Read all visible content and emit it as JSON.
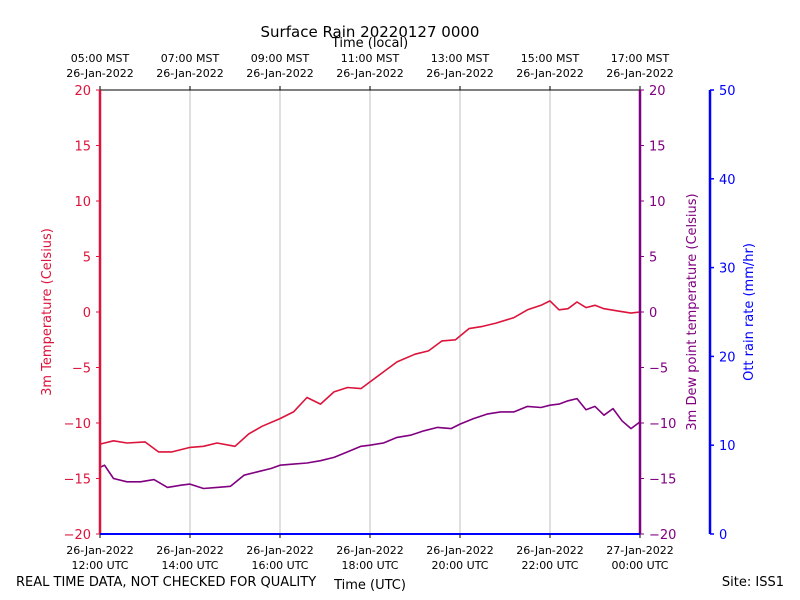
{
  "chart_data": {
    "type": "line",
    "title": "Surface Rain 20220127 0000",
    "top_axis_label": "Time (local)",
    "xlabel": "Time (UTC)",
    "top_ticks": [
      {
        "l1": "05:00 MST",
        "l2": "26-Jan-2022"
      },
      {
        "l1": "07:00 MST",
        "l2": "26-Jan-2022"
      },
      {
        "l1": "09:00 MST",
        "l2": "26-Jan-2022"
      },
      {
        "l1": "11:00 MST",
        "l2": "26-Jan-2022"
      },
      {
        "l1": "13:00 MST",
        "l2": "26-Jan-2022"
      },
      {
        "l1": "15:00 MST",
        "l2": "26-Jan-2022"
      },
      {
        "l1": "17:00 MST",
        "l2": "26-Jan-2022"
      }
    ],
    "bottom_ticks": [
      {
        "l1": "26-Jan-2022",
        "l2": "12:00 UTC"
      },
      {
        "l1": "26-Jan-2022",
        "l2": "14:00 UTC"
      },
      {
        "l1": "26-Jan-2022",
        "l2": "16:00 UTC"
      },
      {
        "l1": "26-Jan-2022",
        "l2": "18:00 UTC"
      },
      {
        "l1": "26-Jan-2022",
        "l2": "20:00 UTC"
      },
      {
        "l1": "26-Jan-2022",
        "l2": "22:00 UTC"
      },
      {
        "l1": "27-Jan-2022",
        "l2": "00:00 UTC"
      }
    ],
    "x_range_hours": [
      12,
      24
    ],
    "x_unit": "UTC hour on 26-Jan-2022",
    "y_left": {
      "label": "3m Temperature (Celsius)",
      "range": [
        -20,
        20
      ],
      "ticks": [
        "20",
        "15",
        "10",
        "5",
        "0",
        "−5",
        "−10",
        "−15",
        "−20"
      ],
      "color": "#dc143c"
    },
    "y_right1": {
      "label": "3m Dew point temperature (Celsius)",
      "range": [
        -20,
        20
      ],
      "ticks": [
        "20",
        "15",
        "10",
        "5",
        "0",
        "−5",
        "−10",
        "−15",
        "−20"
      ],
      "color": "#800080"
    },
    "y_right2": {
      "label": "Ott rain rate (mm/hr)",
      "range": [
        0,
        50
      ],
      "ticks": [
        "50",
        "40",
        "30",
        "20",
        "10",
        "0"
      ],
      "color": "#0000ff"
    },
    "grid": "vertical",
    "series": [
      {
        "name": "3m Temperature",
        "color": "#dc143c",
        "x": [
          12.0,
          12.3,
          12.6,
          13.0,
          13.3,
          13.6,
          14.0,
          14.3,
          14.6,
          15.0,
          15.3,
          15.6,
          16.0,
          16.3,
          16.6,
          16.9,
          17.2,
          17.5,
          17.8,
          18.0,
          18.3,
          18.6,
          19.0,
          19.3,
          19.6,
          19.9,
          20.2,
          20.5,
          20.8,
          21.2,
          21.5,
          21.8,
          22.0,
          22.2,
          22.4,
          22.6,
          22.8,
          23.0,
          23.2,
          23.5,
          23.8,
          24.0
        ],
        "values": [
          -11.9,
          -11.6,
          -11.8,
          -11.7,
          -12.6,
          -12.6,
          -12.2,
          -12.1,
          -11.8,
          -12.1,
          -11.0,
          -10.3,
          -9.6,
          -9.0,
          -7.7,
          -8.3,
          -7.2,
          -6.8,
          -6.9,
          -6.3,
          -5.4,
          -4.5,
          -3.8,
          -3.5,
          -2.6,
          -2.5,
          -1.5,
          -1.3,
          -1.0,
          -0.5,
          0.2,
          0.6,
          1.0,
          0.2,
          0.3,
          0.9,
          0.4,
          0.6,
          0.3,
          0.1,
          -0.1,
          0.0
        ]
      },
      {
        "name": "3m Dew point temperature",
        "color": "#800080",
        "x": [
          12.0,
          12.1,
          12.3,
          12.6,
          12.9,
          13.2,
          13.5,
          13.8,
          14.0,
          14.3,
          14.6,
          14.9,
          15.2,
          15.5,
          15.8,
          16.0,
          16.3,
          16.6,
          16.9,
          17.2,
          17.5,
          17.8,
          18.0,
          18.3,
          18.6,
          18.9,
          19.2,
          19.5,
          19.8,
          20.0,
          20.3,
          20.6,
          20.9,
          21.2,
          21.5,
          21.8,
          22.0,
          22.2,
          22.4,
          22.6,
          22.8,
          23.0,
          23.2,
          23.4,
          23.6,
          23.8,
          24.0
        ],
        "values": [
          -14.0,
          -13.8,
          -15.0,
          -15.3,
          -15.3,
          -15.1,
          -15.8,
          -15.6,
          -15.5,
          -15.9,
          -15.8,
          -15.7,
          -14.7,
          -14.4,
          -14.1,
          -13.8,
          -13.7,
          -13.6,
          -13.4,
          -13.1,
          -12.6,
          -12.1,
          -12.0,
          -11.8,
          -11.3,
          -11.1,
          -10.7,
          -10.4,
          -10.5,
          -10.1,
          -9.6,
          -9.2,
          -9.0,
          -9.0,
          -8.5,
          -8.6,
          -8.4,
          -8.3,
          -8.0,
          -7.8,
          -8.8,
          -8.5,
          -9.3,
          -8.7,
          -9.8,
          -10.5,
          -9.9
        ]
      }
    ]
  },
  "footer": {
    "disclaimer": "REAL TIME DATA, NOT CHECKED FOR QUALITY",
    "site": "Site: ISS1"
  }
}
